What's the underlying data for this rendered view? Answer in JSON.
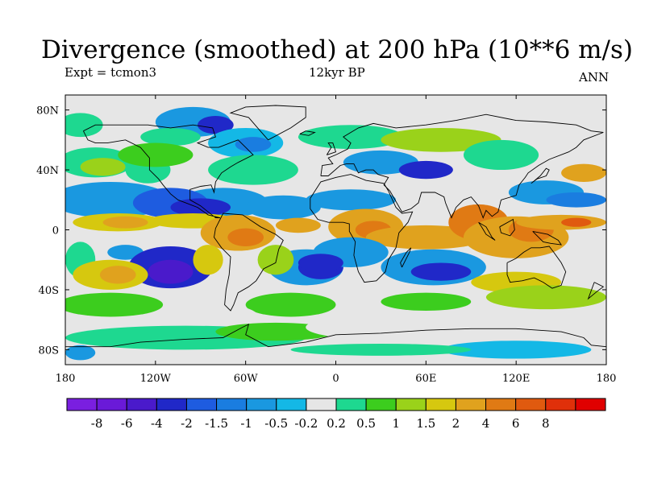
{
  "title": "Divergence (smoothed) at 200 hPa (10**6 m/s)",
  "subtitle_left": "Expt = tcmon3",
  "subtitle_center": "12kyr BP",
  "subtitle_right": "ANN",
  "map": {
    "lon_range": [
      -180,
      180
    ],
    "lat_range": [
      -90,
      90
    ],
    "x_ticks": [
      {
        "lon": -180,
        "label": "180"
      },
      {
        "lon": -120,
        "label": "120W"
      },
      {
        "lon": -60,
        "label": "60W"
      },
      {
        "lon": 0,
        "label": "0"
      },
      {
        "lon": 60,
        "label": "60E"
      },
      {
        "lon": 120,
        "label": "120E"
      },
      {
        "lon": 180,
        "label": "180"
      }
    ],
    "y_ticks": [
      {
        "lat": 80,
        "label": "80N"
      },
      {
        "lat": 40,
        "label": "40N"
      },
      {
        "lat": 0,
        "label": "0"
      },
      {
        "lat": -40,
        "label": "40S"
      },
      {
        "lat": -80,
        "label": "80S"
      }
    ]
  },
  "colorbar": {
    "colors": [
      "#7a1fe0",
      "#6a1ad8",
      "#4a1acb",
      "#2028c8",
      "#1e5ce0",
      "#1a7de0",
      "#1a98e0",
      "#14b8e6",
      "#e6e6e6",
      "#1ed890",
      "#3ccd1e",
      "#9ad21a",
      "#d6c80f",
      "#e0a21e",
      "#e07a14",
      "#e05a0f",
      "#e0300a",
      "#e00000"
    ],
    "labels": [
      "-8",
      "-6",
      "-4",
      "-2",
      "-1.5",
      "-1",
      "-0.5",
      "-0.2",
      "0.2",
      "0.5",
      "1",
      "1.5",
      "2",
      "4",
      "6",
      "8"
    ]
  },
  "regions": [
    {
      "c": 9,
      "lon": -170,
      "lat": 70,
      "rx": 15,
      "ry": 8
    },
    {
      "c": 6,
      "lon": -95,
      "lat": 72,
      "rx": 25,
      "ry": 10
    },
    {
      "c": 3,
      "lon": -80,
      "lat": 70,
      "rx": 12,
      "ry": 6
    },
    {
      "c": 9,
      "lon": -110,
      "lat": 62,
      "rx": 20,
      "ry": 6
    },
    {
      "c": 9,
      "lon": -160,
      "lat": 45,
      "rx": 25,
      "ry": 10
    },
    {
      "c": 11,
      "lon": -155,
      "lat": 42,
      "rx": 15,
      "ry": 6
    },
    {
      "c": 9,
      "lon": -125,
      "lat": 40,
      "rx": 15,
      "ry": 9
    },
    {
      "c": 10,
      "lon": -120,
      "lat": 50,
      "rx": 25,
      "ry": 8
    },
    {
      "c": 7,
      "lon": -60,
      "lat": 58,
      "rx": 25,
      "ry": 10
    },
    {
      "c": 5,
      "lon": -55,
      "lat": 57,
      "rx": 12,
      "ry": 5
    },
    {
      "c": 9,
      "lon": -55,
      "lat": 40,
      "rx": 30,
      "ry": 10
    },
    {
      "c": 6,
      "lon": -150,
      "lat": 20,
      "rx": 40,
      "ry": 12
    },
    {
      "c": 6,
      "lon": -75,
      "lat": 18,
      "rx": 30,
      "ry": 10
    },
    {
      "c": 4,
      "lon": -110,
      "lat": 18,
      "rx": 25,
      "ry": 10
    },
    {
      "c": 3,
      "lon": -90,
      "lat": 15,
      "rx": 20,
      "ry": 6
    },
    {
      "c": 6,
      "lon": -35,
      "lat": 15,
      "rx": 25,
      "ry": 8
    },
    {
      "c": 12,
      "lon": -145,
      "lat": 5,
      "rx": 30,
      "ry": 6
    },
    {
      "c": 13,
      "lon": -140,
      "lat": 5,
      "rx": 15,
      "ry": 4
    },
    {
      "c": 12,
      "lon": -95,
      "lat": 6,
      "rx": 30,
      "ry": 5
    },
    {
      "c": 13,
      "lon": -65,
      "lat": -2,
      "rx": 25,
      "ry": 12
    },
    {
      "c": 14,
      "lon": -60,
      "lat": -5,
      "rx": 12,
      "ry": 6
    },
    {
      "c": 13,
      "lon": -25,
      "lat": 3,
      "rx": 15,
      "ry": 5
    },
    {
      "c": 9,
      "lon": -170,
      "lat": -20,
      "rx": 10,
      "ry": 12
    },
    {
      "c": 6,
      "lon": -140,
      "lat": -15,
      "rx": 12,
      "ry": 5
    },
    {
      "c": 3,
      "lon": -110,
      "lat": -25,
      "rx": 28,
      "ry": 14
    },
    {
      "c": 2,
      "lon": -110,
      "lat": -28,
      "rx": 15,
      "ry": 8
    },
    {
      "c": 12,
      "lon": -150,
      "lat": -30,
      "rx": 25,
      "ry": 10
    },
    {
      "c": 13,
      "lon": -145,
      "lat": -30,
      "rx": 12,
      "ry": 6
    },
    {
      "c": 12,
      "lon": -85,
      "lat": -20,
      "rx": 10,
      "ry": 10
    },
    {
      "c": 6,
      "lon": -20,
      "lat": -25,
      "rx": 25,
      "ry": 12
    },
    {
      "c": 3,
      "lon": -10,
      "lat": -25,
      "rx": 15,
      "ry": 8
    },
    {
      "c": 11,
      "lon": -40,
      "lat": -20,
      "rx": 12,
      "ry": 10
    },
    {
      "c": 10,
      "lon": -150,
      "lat": -50,
      "rx": 35,
      "ry": 8
    },
    {
      "c": 10,
      "lon": -30,
      "lat": -50,
      "rx": 30,
      "ry": 8
    },
    {
      "c": 8,
      "lon": -75,
      "lat": -60,
      "rx": 25,
      "ry": 10
    },
    {
      "c": 9,
      "lon": -100,
      "lat": -72,
      "rx": 80,
      "ry": 8
    },
    {
      "c": 10,
      "lon": -40,
      "lat": -68,
      "rx": 40,
      "ry": 6
    },
    {
      "c": 6,
      "lon": -170,
      "lat": -82,
      "rx": 10,
      "ry": 5
    },
    {
      "c": 9,
      "lon": 10,
      "lat": 62,
      "rx": 35,
      "ry": 8
    },
    {
      "c": 6,
      "lon": 30,
      "lat": 45,
      "rx": 25,
      "ry": 8
    },
    {
      "c": 3,
      "lon": 60,
      "lat": 40,
      "rx": 18,
      "ry": 6
    },
    {
      "c": 11,
      "lon": 70,
      "lat": 60,
      "rx": 40,
      "ry": 8
    },
    {
      "c": 9,
      "lon": 110,
      "lat": 50,
      "rx": 25,
      "ry": 10
    },
    {
      "c": 6,
      "lon": 10,
      "lat": 20,
      "rx": 30,
      "ry": 7
    },
    {
      "c": 13,
      "lon": 20,
      "lat": 2,
      "rx": 25,
      "ry": 12
    },
    {
      "c": 14,
      "lon": 25,
      "lat": 0,
      "rx": 12,
      "ry": 6
    },
    {
      "c": 13,
      "lon": 60,
      "lat": -5,
      "rx": 40,
      "ry": 8
    },
    {
      "c": 14,
      "lon": 95,
      "lat": 5,
      "rx": 20,
      "ry": 12
    },
    {
      "c": 13,
      "lon": 120,
      "lat": -5,
      "rx": 35,
      "ry": 14
    },
    {
      "c": 14,
      "lon": 130,
      "lat": 0,
      "rx": 15,
      "ry": 8
    },
    {
      "c": 13,
      "lon": 150,
      "lat": 5,
      "rx": 30,
      "ry": 5
    },
    {
      "c": 15,
      "lon": 160,
      "lat": 5,
      "rx": 10,
      "ry": 3
    },
    {
      "c": 6,
      "lon": 140,
      "lat": 25,
      "rx": 25,
      "ry": 8
    },
    {
      "c": 5,
      "lon": 160,
      "lat": 20,
      "rx": 20,
      "ry": 5
    },
    {
      "c": 13,
      "lon": 165,
      "lat": 38,
      "rx": 15,
      "ry": 6
    },
    {
      "c": 6,
      "lon": 10,
      "lat": -15,
      "rx": 25,
      "ry": 10
    },
    {
      "c": 3,
      "lon": -10,
      "lat": -22,
      "rx": 15,
      "ry": 6
    },
    {
      "c": 6,
      "lon": 65,
      "lat": -25,
      "rx": 35,
      "ry": 12
    },
    {
      "c": 3,
      "lon": 70,
      "lat": -28,
      "rx": 20,
      "ry": 6
    },
    {
      "c": 12,
      "lon": 120,
      "lat": -35,
      "rx": 30,
      "ry": 7
    },
    {
      "c": 11,
      "lon": 140,
      "lat": -45,
      "rx": 40,
      "ry": 8
    },
    {
      "c": 10,
      "lon": 60,
      "lat": -48,
      "rx": 30,
      "ry": 6
    },
    {
      "c": 8,
      "lon": 40,
      "lat": -65,
      "rx": 60,
      "ry": 9
    },
    {
      "c": 7,
      "lon": 120,
      "lat": -80,
      "rx": 50,
      "ry": 6
    },
    {
      "c": 9,
      "lon": 30,
      "lat": -80,
      "rx": 60,
      "ry": 4
    }
  ]
}
